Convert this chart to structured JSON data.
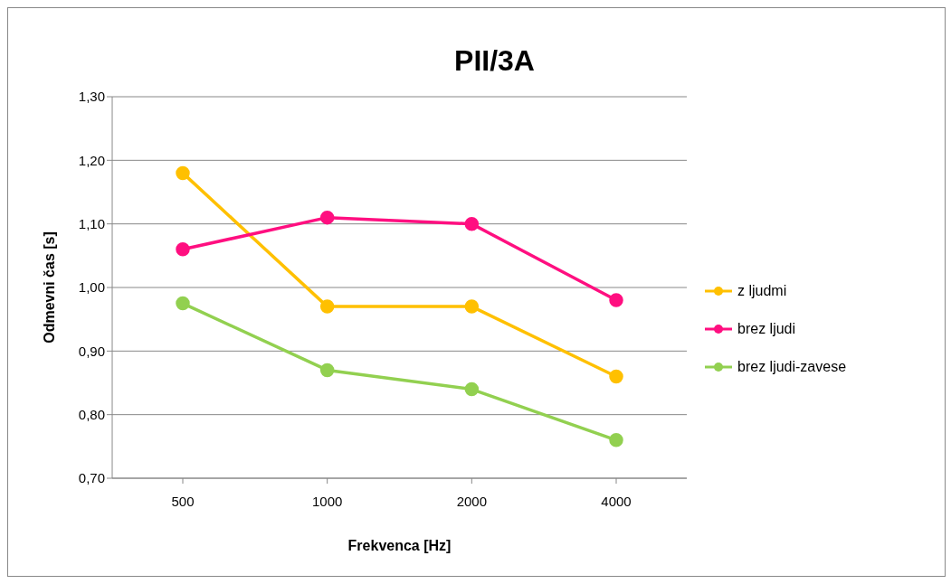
{
  "chart_data": {
    "type": "line",
    "title": "PII/3A",
    "xlabel": "Frekvenca [Hz]",
    "ylabel": "Odmevni čas [s]",
    "categories": [
      "500",
      "1000",
      "2000",
      "4000"
    ],
    "series": [
      {
        "name": "z ljudmi",
        "color": "#ffc000",
        "values": [
          1.18,
          0.97,
          0.97,
          0.86
        ]
      },
      {
        "name": "brez ljudi",
        "color": "#ff0f80",
        "values": [
          1.06,
          1.11,
          1.1,
          0.98
        ]
      },
      {
        "name": "brez ljudi-zavese",
        "color": "#92d050",
        "values": [
          0.975,
          0.87,
          0.84,
          0.76
        ]
      }
    ],
    "ylim": [
      0.7,
      1.3
    ],
    "yticks": [
      {
        "value": 0.7,
        "label": "0,70"
      },
      {
        "value": 0.8,
        "label": "0,80"
      },
      {
        "value": 0.9,
        "label": "0,90"
      },
      {
        "value": 1.0,
        "label": "1,00"
      },
      {
        "value": 1.1,
        "label": "1,10"
      },
      {
        "value": 1.2,
        "label": "1,20"
      },
      {
        "value": 1.3,
        "label": "1,30"
      }
    ],
    "grid": "y",
    "legend": "right",
    "marker": "circle",
    "line_style": "solid"
  }
}
